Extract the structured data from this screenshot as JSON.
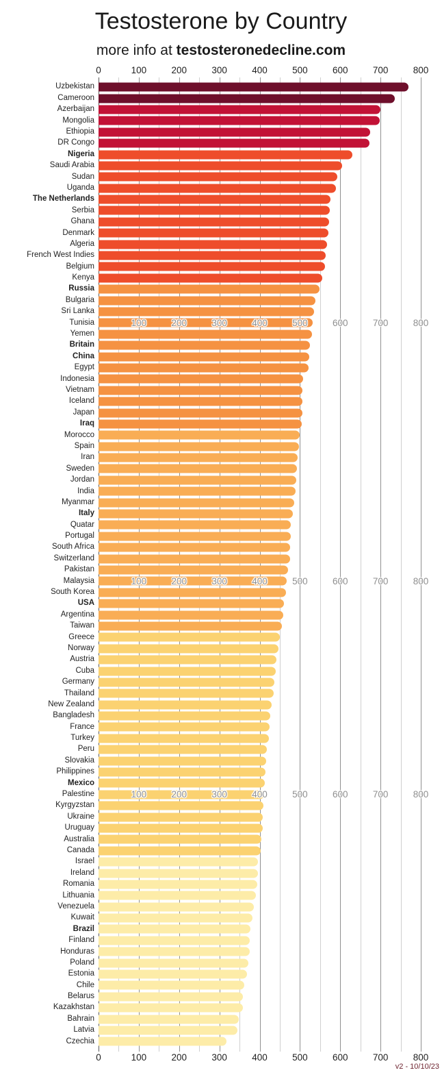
{
  "title": "Testosterone by Country",
  "subtitle": {
    "prefix": "more info at ",
    "site": "testosteronedecline.com"
  },
  "footer": "v2 - 10/10/23",
  "axis": {
    "min": 0,
    "max": 800,
    "major_step": 100,
    "minor_step": 50,
    "tick_labels": [
      "0",
      "100",
      "200",
      "300",
      "400",
      "500",
      "600",
      "700",
      "800"
    ]
  },
  "inline_axis": {
    "labels": [
      "100",
      "200",
      "300",
      "400",
      "500",
      "600",
      "700",
      "800"
    ],
    "row_indices": [
      21,
      44,
      63
    ]
  },
  "color_bands": [
    {
      "start": 0,
      "end": 1,
      "color": "#6e0f2b"
    },
    {
      "start": 2,
      "end": 5,
      "color": "#c21236"
    },
    {
      "start": 6,
      "end": 17,
      "color": "#ee4d2b"
    },
    {
      "start": 18,
      "end": 30,
      "color": "#f59242"
    },
    {
      "start": 31,
      "end": 48,
      "color": "#f9ad55"
    },
    {
      "start": 49,
      "end": 68,
      "color": "#fbd271"
    },
    {
      "start": 69,
      "end": 85,
      "color": "#fdeca8"
    }
  ],
  "chart_data": {
    "type": "bar",
    "orientation": "horizontal",
    "title": "Testosterone by Country",
    "subtitle": "more info at testosteronedecline.com",
    "xlabel": "",
    "ylabel": "",
    "xlim": [
      0,
      800
    ],
    "grid": true,
    "legend": false,
    "categories": [
      "Uzbekistan",
      "Cameroon",
      "Azerbaijan",
      "Mongolia",
      "Ethiopia",
      "DR Congo",
      "Nigeria",
      "Saudi Arabia",
      "Sudan",
      "Uganda",
      "The Netherlands",
      "Serbia",
      "Ghana",
      "Denmark",
      "Algeria",
      "French West Indies",
      "Belgium",
      "Kenya",
      "Russia",
      "Bulgaria",
      "Sri Lanka",
      "Tunisia",
      "Yemen",
      "Britain",
      "China",
      "Egypt",
      "Indonesia",
      "Vietnam",
      "Iceland",
      "Japan",
      "Iraq",
      "Morocco",
      "Spain",
      "Iran",
      "Sweden",
      "Jordan",
      "India",
      "Myanmar",
      "Italy",
      "Quatar",
      "Portugal",
      "South Africa",
      "Switzerland",
      "Pakistan",
      "Malaysia",
      "South Korea",
      "USA",
      "Argentina",
      "Taiwan",
      "Greece",
      "Norway",
      "Austria",
      "Cuba",
      "Germany",
      "Thailand",
      "New Zealand",
      "Bangladesh",
      "France",
      "Turkey",
      "Peru",
      "Slovakia",
      "Philippines",
      "Mexico",
      "Palestine",
      "Kyrgyzstan",
      "Ukraine",
      "Uruguay",
      "Australia",
      "Canada",
      "Israel",
      "Ireland",
      "Romania",
      "Lithuania",
      "Venezuela",
      "Kuwait",
      "Brazil",
      "Finland",
      "Honduras",
      "Poland",
      "Estonia",
      "Chile",
      "Belarus",
      "Kazakhstan",
      "Bahrain",
      "Latvia",
      "Czechia"
    ],
    "values": [
      770,
      735,
      700,
      698,
      675,
      672,
      630,
      605,
      592,
      590,
      575,
      574,
      573,
      570,
      568,
      564,
      562,
      556,
      548,
      538,
      535,
      532,
      530,
      524,
      523,
      522,
      508,
      507,
      506,
      506,
      505,
      500,
      498,
      494,
      492,
      491,
      489,
      486,
      483,
      478,
      477,
      476,
      475,
      470,
      467,
      465,
      460,
      458,
      455,
      450,
      446,
      441,
      440,
      436,
      435,
      430,
      426,
      424,
      423,
      417,
      416,
      415,
      413,
      411,
      409,
      408,
      407,
      405,
      403,
      396,
      395,
      394,
      390,
      386,
      382,
      377,
      376,
      375,
      372,
      369,
      361,
      359,
      358,
      348,
      344,
      318
    ],
    "highlighted": [
      "Nigeria",
      "The Netherlands",
      "Russia",
      "Britain",
      "China",
      "Iraq",
      "Italy",
      "USA",
      "Mexico",
      "Brazil"
    ]
  }
}
